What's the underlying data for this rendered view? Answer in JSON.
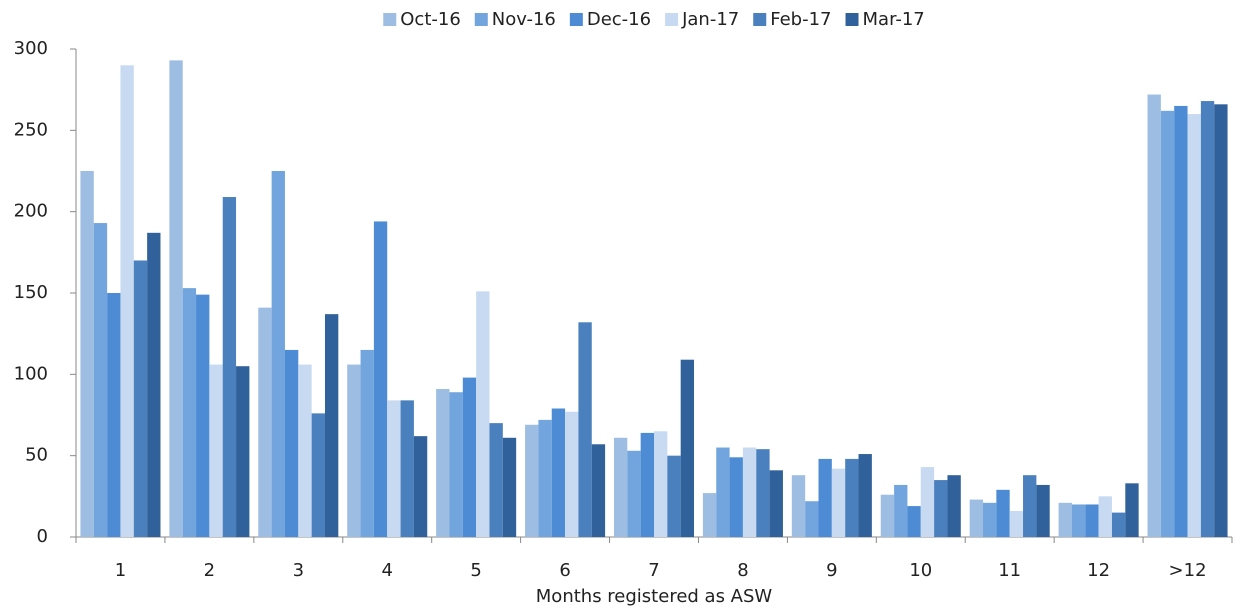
{
  "chart_data": {
    "type": "bar",
    "x_label": "Months registered as ASW",
    "categories": [
      "1",
      "2",
      "3",
      "4",
      "5",
      "6",
      "7",
      "8",
      "9",
      "10",
      "11",
      "12",
      ">12"
    ],
    "series": [
      {
        "name": "Oct-16",
        "color": "#9dbde2",
        "values": [
          225,
          293,
          141,
          106,
          91,
          69,
          61,
          27,
          38,
          26,
          23,
          21,
          272
        ]
      },
      {
        "name": "Nov-16",
        "color": "#72a5de",
        "values": [
          193,
          153,
          225,
          115,
          89,
          72,
          53,
          55,
          22,
          32,
          21,
          20,
          262
        ]
      },
      {
        "name": "Dec-16",
        "color": "#4d8cd4",
        "values": [
          150,
          149,
          115,
          194,
          98,
          79,
          64,
          49,
          48,
          19,
          29,
          20,
          265
        ]
      },
      {
        "name": "Jan-17",
        "color": "#c8daf1",
        "values": [
          290,
          106,
          106,
          84,
          151,
          77,
          65,
          55,
          42,
          43,
          16,
          25,
          260
        ]
      },
      {
        "name": "Feb-17",
        "color": "#4a80bd",
        "values": [
          170,
          209,
          76,
          84,
          70,
          132,
          50,
          54,
          48,
          35,
          38,
          15,
          268
        ]
      },
      {
        "name": "Mar-17",
        "color": "#31619a",
        "values": [
          187,
          105,
          137,
          62,
          61,
          57,
          109,
          41,
          51,
          38,
          32,
          33,
          266
        ]
      }
    ],
    "ylim": [
      0,
      300
    ],
    "yticks": [
      0,
      50,
      100,
      150,
      200,
      250,
      300
    ],
    "legend": "top"
  }
}
